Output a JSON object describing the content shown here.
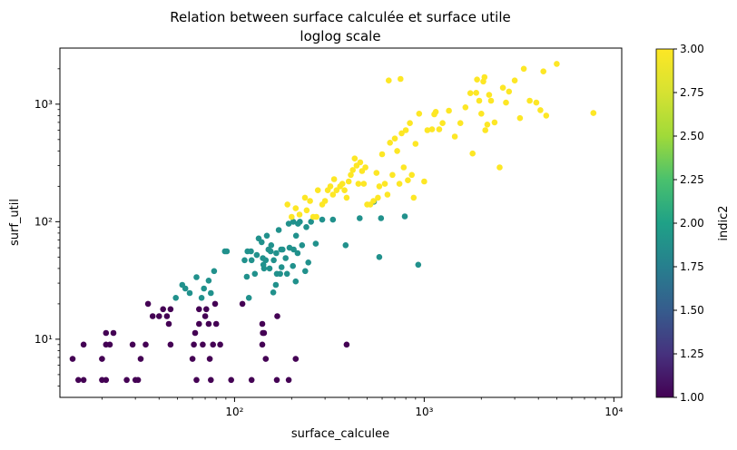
{
  "chart_data": {
    "type": "scatter",
    "title": "Relation between surface calculée et surface utile",
    "subtitle": "loglog scale",
    "xlabel": "surface_calculee",
    "ylabel": "surf_util",
    "x_scale": "log",
    "y_scale": "log",
    "xlim": [
      12,
      11000
    ],
    "ylim": [
      3.2,
      3000
    ],
    "x_ticks": [
      {
        "value": 100,
        "label": "10²"
      },
      {
        "value": 1000,
        "label": "10³"
      },
      {
        "value": 10000,
        "label": "10⁴"
      }
    ],
    "y_ticks": [
      {
        "value": 10,
        "label": "10¹"
      },
      {
        "value": 100,
        "label": "10²"
      },
      {
        "value": 1000,
        "label": "10³"
      }
    ],
    "grid": false,
    "colorbar": {
      "label": "indic2",
      "min": 1.0,
      "max": 3.0,
      "colormap": "viridis",
      "ticks": [
        "1.00",
        "1.25",
        "1.50",
        "1.75",
        "2.00",
        "2.25",
        "2.50",
        "2.75",
        "3.00"
      ]
    },
    "colors": {
      "1": "#440154",
      "2": "#21918c",
      "3": "#fde725"
    },
    "points": [
      [
        14,
        6.8,
        1
      ],
      [
        15,
        4.5,
        1
      ],
      [
        16,
        4.5,
        1
      ],
      [
        16,
        9,
        1
      ],
      [
        20,
        4.5,
        1
      ],
      [
        20,
        6.8,
        1
      ],
      [
        21,
        4.5,
        1
      ],
      [
        21,
        11.3,
        1
      ],
      [
        22,
        9,
        1
      ],
      [
        21,
        9,
        1
      ],
      [
        23,
        11.3,
        1
      ],
      [
        27,
        4.5,
        1
      ],
      [
        29,
        9,
        1
      ],
      [
        30,
        4.5,
        1
      ],
      [
        31,
        4.5,
        1
      ],
      [
        32,
        6.8,
        1
      ],
      [
        34,
        9,
        1
      ],
      [
        35,
        20,
        1
      ],
      [
        37,
        15.7,
        1
      ],
      [
        40,
        15.7,
        1
      ],
      [
        42,
        18,
        1
      ],
      [
        44,
        15.7,
        1
      ],
      [
        46,
        18,
        1
      ],
      [
        46,
        9,
        1
      ],
      [
        45,
        13.5,
        1
      ],
      [
        60,
        6.8,
        1
      ],
      [
        61,
        9,
        1
      ],
      [
        62,
        11.3,
        1
      ],
      [
        63,
        4.5,
        1
      ],
      [
        65,
        13.5,
        1
      ],
      [
        65,
        18,
        1
      ],
      [
        68,
        9,
        1
      ],
      [
        70,
        15.7,
        1
      ],
      [
        71,
        18,
        1
      ],
      [
        73,
        13.5,
        1
      ],
      [
        74,
        6.8,
        1
      ],
      [
        75,
        4.5,
        1
      ],
      [
        77,
        9,
        1
      ],
      [
        79,
        20,
        1
      ],
      [
        80,
        13.5,
        1
      ],
      [
        84,
        9,
        1
      ],
      [
        96,
        4.5,
        1
      ],
      [
        110,
        20,
        1
      ],
      [
        123,
        4.5,
        1
      ],
      [
        140,
        9,
        1
      ],
      [
        140,
        13.5,
        1
      ],
      [
        141,
        11.3,
        1
      ],
      [
        143,
        11.3,
        1
      ],
      [
        146,
        6.8,
        1
      ],
      [
        167,
        4.5,
        1
      ],
      [
        168,
        15.7,
        1
      ],
      [
        193,
        4.5,
        1
      ],
      [
        210,
        6.8,
        1
      ],
      [
        390,
        9,
        1
      ],
      [
        49,
        22.5,
        2
      ],
      [
        53,
        29,
        2
      ],
      [
        55,
        27,
        2
      ],
      [
        58,
        24.7,
        2
      ],
      [
        63,
        33.7,
        2
      ],
      [
        67,
        22.5,
        2
      ],
      [
        69,
        27,
        2
      ],
      [
        73,
        31.5,
        2
      ],
      [
        75,
        24.7,
        2
      ],
      [
        78,
        38,
        2
      ],
      [
        89,
        56,
        2
      ],
      [
        91,
        56,
        2
      ],
      [
        113,
        47,
        2
      ],
      [
        116,
        34,
        2
      ],
      [
        117,
        56,
        2
      ],
      [
        119,
        22.5,
        2
      ],
      [
        122,
        56,
        2
      ],
      [
        123,
        47,
        2
      ],
      [
        128,
        36,
        2
      ],
      [
        131,
        52,
        2
      ],
      [
        134,
        72,
        2
      ],
      [
        139,
        67,
        2
      ],
      [
        141,
        49,
        2
      ],
      [
        142,
        43,
        2
      ],
      [
        143,
        40,
        2
      ],
      [
        146,
        47,
        2
      ],
      [
        148,
        76,
        2
      ],
      [
        151,
        58,
        2
      ],
      [
        153,
        40,
        2
      ],
      [
        155,
        56,
        2
      ],
      [
        156,
        63,
        2
      ],
      [
        160,
        25,
        2
      ],
      [
        161,
        47,
        2
      ],
      [
        165,
        29,
        2
      ],
      [
        166,
        54,
        2
      ],
      [
        167,
        36,
        2
      ],
      [
        171,
        85,
        2
      ],
      [
        174,
        36,
        2
      ],
      [
        176,
        58,
        2
      ],
      [
        177,
        41,
        2
      ],
      [
        179,
        58,
        2
      ],
      [
        186,
        49,
        2
      ],
      [
        189,
        36,
        2
      ],
      [
        193,
        96,
        2
      ],
      [
        195,
        60,
        2
      ],
      [
        203,
        42,
        2
      ],
      [
        204,
        100,
        2
      ],
      [
        205,
        58,
        2
      ],
      [
        210,
        31,
        2
      ],
      [
        211,
        76,
        2
      ],
      [
        215,
        54,
        2
      ],
      [
        216,
        96,
        2
      ],
      [
        221,
        100,
        2
      ],
      [
        227,
        63,
        2
      ],
      [
        236,
        38,
        2
      ],
      [
        239,
        90,
        2
      ],
      [
        245,
        45,
        2
      ],
      [
        253,
        100,
        2
      ],
      [
        268,
        65,
        2
      ],
      [
        290,
        104,
        2
      ],
      [
        330,
        104,
        2
      ],
      [
        385,
        63,
        2
      ],
      [
        457,
        107,
        2
      ],
      [
        543,
        148,
        2
      ],
      [
        580,
        50,
        2
      ],
      [
        592,
        107,
        2
      ],
      [
        790,
        111,
        2
      ],
      [
        930,
        43,
        2
      ],
      [
        190,
        140,
        3
      ],
      [
        200,
        110,
        3
      ],
      [
        210,
        130,
        3
      ],
      [
        220,
        115,
        3
      ],
      [
        235,
        160,
        3
      ],
      [
        240,
        125,
        3
      ],
      [
        250,
        150,
        3
      ],
      [
        260,
        110,
        3
      ],
      [
        270,
        110,
        3
      ],
      [
        275,
        185,
        3
      ],
      [
        290,
        140,
        3
      ],
      [
        300,
        150,
        3
      ],
      [
        310,
        185,
        3
      ],
      [
        320,
        200,
        3
      ],
      [
        330,
        170,
        3
      ],
      [
        335,
        230,
        3
      ],
      [
        345,
        185,
        3
      ],
      [
        360,
        200,
        3
      ],
      [
        370,
        210,
        3
      ],
      [
        380,
        185,
        3
      ],
      [
        390,
        160,
        3
      ],
      [
        400,
        220,
        3
      ],
      [
        410,
        250,
        3
      ],
      [
        420,
        275,
        3
      ],
      [
        430,
        345,
        3
      ],
      [
        440,
        300,
        3
      ],
      [
        450,
        210,
        3
      ],
      [
        460,
        320,
        3
      ],
      [
        470,
        270,
        3
      ],
      [
        480,
        210,
        3
      ],
      [
        490,
        290,
        3
      ],
      [
        500,
        140,
        3
      ],
      [
        520,
        140,
        3
      ],
      [
        540,
        150,
        3
      ],
      [
        560,
        260,
        3
      ],
      [
        570,
        160,
        3
      ],
      [
        580,
        200,
        3
      ],
      [
        600,
        375,
        3
      ],
      [
        620,
        210,
        3
      ],
      [
        640,
        170,
        3
      ],
      [
        660,
        470,
        3
      ],
      [
        680,
        250,
        3
      ],
      [
        700,
        510,
        3
      ],
      [
        720,
        400,
        3
      ],
      [
        740,
        210,
        3
      ],
      [
        760,
        565,
        3
      ],
      [
        780,
        290,
        3
      ],
      [
        800,
        600,
        3
      ],
      [
        820,
        225,
        3
      ],
      [
        840,
        690,
        3
      ],
      [
        860,
        250,
        3
      ],
      [
        880,
        160,
        3
      ],
      [
        900,
        460,
        3
      ],
      [
        940,
        830,
        3
      ],
      [
        1000,
        220,
        3
      ],
      [
        1040,
        600,
        3
      ],
      [
        1100,
        610,
        3
      ],
      [
        1150,
        860,
        3
      ],
      [
        1200,
        610,
        3
      ],
      [
        1250,
        690,
        3
      ],
      [
        1350,
        880,
        3
      ],
      [
        1450,
        530,
        3
      ],
      [
        1550,
        690,
        3
      ],
      [
        1650,
        940,
        3
      ],
      [
        1750,
        1240,
        3
      ],
      [
        1800,
        380,
        3
      ],
      [
        1880,
        1250,
        3
      ],
      [
        1950,
        1070,
        3
      ],
      [
        2000,
        830,
        3
      ],
      [
        2050,
        1560,
        3
      ],
      [
        2100,
        600,
        3
      ],
      [
        2150,
        670,
        3
      ],
      [
        2200,
        1200,
        3
      ],
      [
        2250,
        1070,
        3
      ],
      [
        2350,
        700,
        3
      ],
      [
        2500,
        290,
        3
      ],
      [
        2600,
        1380,
        3
      ],
      [
        2700,
        1030,
        3
      ],
      [
        2800,
        1280,
        3
      ],
      [
        3000,
        1590,
        3
      ],
      [
        3200,
        760,
        3
      ],
      [
        3350,
        2000,
        3
      ],
      [
        3600,
        1070,
        3
      ],
      [
        3900,
        1030,
        3
      ],
      [
        4100,
        890,
        3
      ],
      [
        4250,
        1900,
        3
      ],
      [
        4400,
        800,
        3
      ],
      [
        5000,
        2200,
        3
      ],
      [
        7800,
        840,
        3
      ],
      [
        2080,
        1700,
        3
      ],
      [
        1900,
        1620,
        3
      ],
      [
        1130,
        820,
        3
      ],
      [
        750,
        1640,
        3
      ],
      [
        650,
        1590,
        3
      ]
    ]
  }
}
